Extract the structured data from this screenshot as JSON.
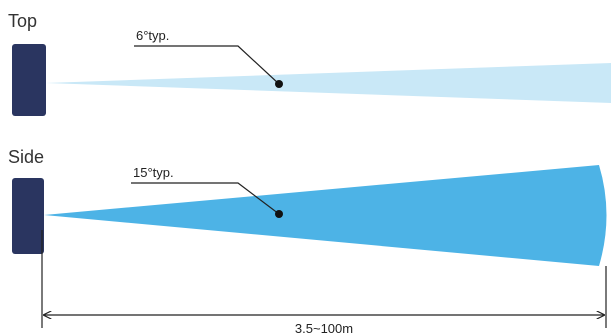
{
  "top_view": {
    "label": "Top",
    "angle_label": "6°typ.",
    "beam_color": "#c9e8f7"
  },
  "side_view": {
    "label": "Side",
    "angle_label": "15°typ.",
    "beam_color": "#4db3e6"
  },
  "sensor_color": "#2a3560",
  "range_label": "3.5~100m"
}
